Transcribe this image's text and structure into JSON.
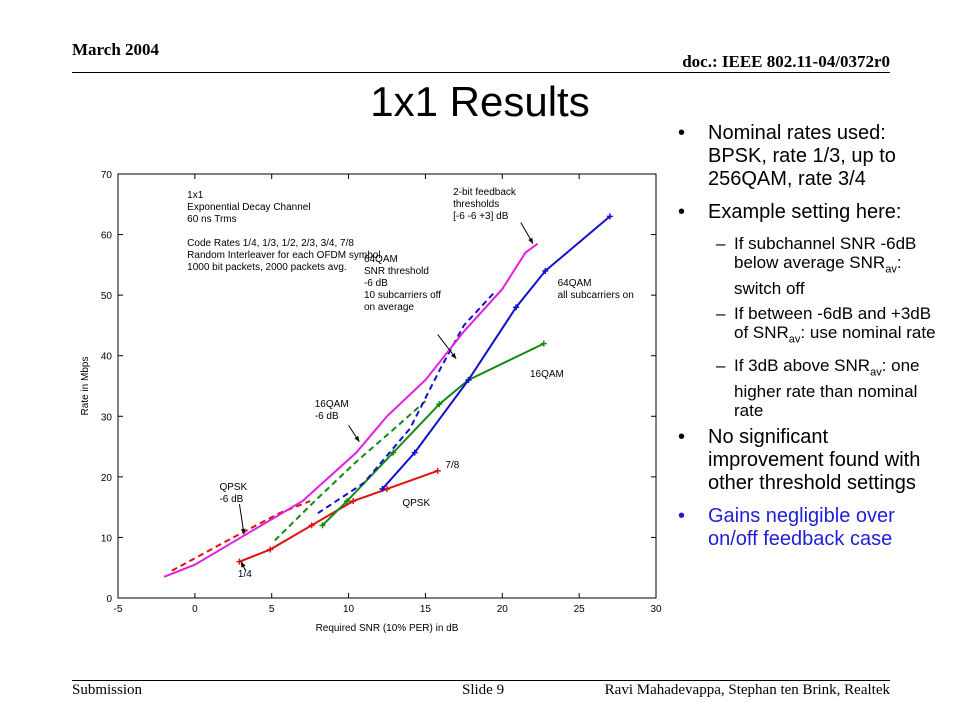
{
  "header": {
    "date": "March 2004",
    "doc": "doc.: IEEE 802.11-04/0372r0"
  },
  "title": "1x1 Results",
  "footer": {
    "left": "Submission",
    "center": "Slide 9",
    "right": "Ravi Mahadevappa, Stephan ten Brink, Realtek"
  },
  "bullets": {
    "b1": "Nominal rates used: BPSK, rate 1/3, up to 256QAM, rate 3/4",
    "b2": "Example setting here:",
    "s1_pre": "If subchannel SNR -6dB below average SNR",
    "s1_sub": "av",
    "s1_post": ": switch off",
    "s2_pre": "If between -6dB and +3dB of SNR",
    "s2_sub": "av",
    "s2_post": ": use nominal rate",
    "s3_pre": "If 3dB above SNR",
    "s3_sub": "av",
    "s3_post": ": one higher rate than nominal rate",
    "b3": "No significant improvement found with other threshold settings",
    "b4": "Gains negligible over on/off feedback case",
    "b4_color": "#1f1fd6"
  },
  "chart_data": {
    "type": "line",
    "xlabel": "Required SNR (10% PER) in dB",
    "ylabel": "Rate in Mbps",
    "xlim": [
      -5,
      30
    ],
    "ylim": [
      0,
      70
    ],
    "xticks": [
      -5,
      0,
      5,
      10,
      15,
      20,
      25,
      30
    ],
    "yticks": [
      0,
      10,
      20,
      30,
      40,
      50,
      60,
      70
    ],
    "grid": false,
    "series": [
      {
        "color": "#e01010",
        "dash": false,
        "marker": true,
        "x": [
          2.9,
          4.9,
          7.6,
          10.3,
          12.5,
          15.8
        ],
        "y": [
          6,
          8,
          12,
          16,
          18,
          21
        ]
      },
      {
        "color": "#e01010",
        "dash": true,
        "marker": false,
        "x": [
          -1.5,
          2.5,
          5.5,
          7.5
        ],
        "y": [
          4.5,
          10,
          14,
          16
        ]
      },
      {
        "color": "#138a13",
        "dash": false,
        "marker": true,
        "x": [
          8.3,
          9.9,
          12.9,
          15.9,
          17.8,
          22.7
        ],
        "y": [
          12,
          16,
          24,
          32,
          36,
          42
        ]
      },
      {
        "color": "#138a13",
        "dash": true,
        "marker": false,
        "x": [
          5.2,
          7.8,
          10.5,
          13.0,
          15.0
        ],
        "y": [
          9.5,
          16,
          22.5,
          28,
          32.5
        ]
      },
      {
        "color": "#1010d0",
        "dash": false,
        "marker": true,
        "x": [
          12.2,
          14.3,
          17.8,
          20.9,
          22.8,
          27.0
        ],
        "y": [
          18,
          24,
          36,
          48,
          54,
          63
        ]
      },
      {
        "color": "#1010d0",
        "dash": true,
        "marker": false,
        "x": [
          8.0,
          11.0,
          14.0,
          16.0,
          17.5,
          19.5
        ],
        "y": [
          14,
          19,
          28,
          38,
          45,
          50.5
        ]
      },
      {
        "color": "#e020e0",
        "dash": false,
        "marker": false,
        "x": [
          -2,
          0,
          3,
          7,
          10.5,
          12.5,
          15,
          17.5,
          20,
          21.5,
          22.3
        ],
        "y": [
          3.5,
          5.5,
          10,
          16,
          24,
          30,
          36,
          44,
          51,
          57,
          58.5
        ]
      }
    ],
    "annotations": [
      {
        "lines": [
          "1x1",
          "Exponential Decay Channel",
          "60 ns Trms",
          "",
          "Code Rates 1/4, 1/3, 1/2, 2/3, 3/4, 7/8",
          "Random Interleaver for each OFDM symbol",
          "1000 bit packets, 2000 packets avg."
        ],
        "x": -0.5,
        "y": 66
      },
      {
        "lines": [
          "2-bit feedback",
          "thresholds",
          "[-6 -6 +3] dB"
        ],
        "x": 16.8,
        "y": 66.5
      },
      {
        "lines": [
          "64QAM",
          "SNR threshold",
          "-6 dB",
          "10 subcarriers off",
          "on average"
        ],
        "x": 11.0,
        "y": 55.5
      },
      {
        "lines": [
          "64QAM",
          "all subcarriers on"
        ],
        "x": 23.6,
        "y": 51.5
      },
      {
        "lines": [
          "16QAM"
        ],
        "x": 21.8,
        "y": 36.5
      },
      {
        "lines": [
          "16QAM",
          "-6 dB"
        ],
        "x": 7.8,
        "y": 31.5
      },
      {
        "lines": [
          "7/8"
        ],
        "x": 16.3,
        "y": 21.5
      },
      {
        "lines": [
          "QPSK"
        ],
        "x": 13.5,
        "y": 15.2
      },
      {
        "lines": [
          "QPSK",
          "-6 dB"
        ],
        "x": 1.6,
        "y": 17.8
      },
      {
        "lines": [
          "1/4"
        ],
        "x": 2.8,
        "y": 3.5
      }
    ],
    "arrows": [
      {
        "from": [
          2.9,
          15.5
        ],
        "to": [
          3.2,
          10.5
        ]
      },
      {
        "from": [
          10.0,
          28.5
        ],
        "to": [
          10.7,
          25.8
        ]
      },
      {
        "from": [
          15.8,
          43.5
        ],
        "to": [
          17.0,
          39.5
        ]
      },
      {
        "from": [
          21.2,
          62.0
        ],
        "to": [
          22.0,
          58.5
        ]
      },
      {
        "from": [
          3.3,
          4.5
        ],
        "to": [
          3.0,
          6.0
        ]
      }
    ]
  }
}
